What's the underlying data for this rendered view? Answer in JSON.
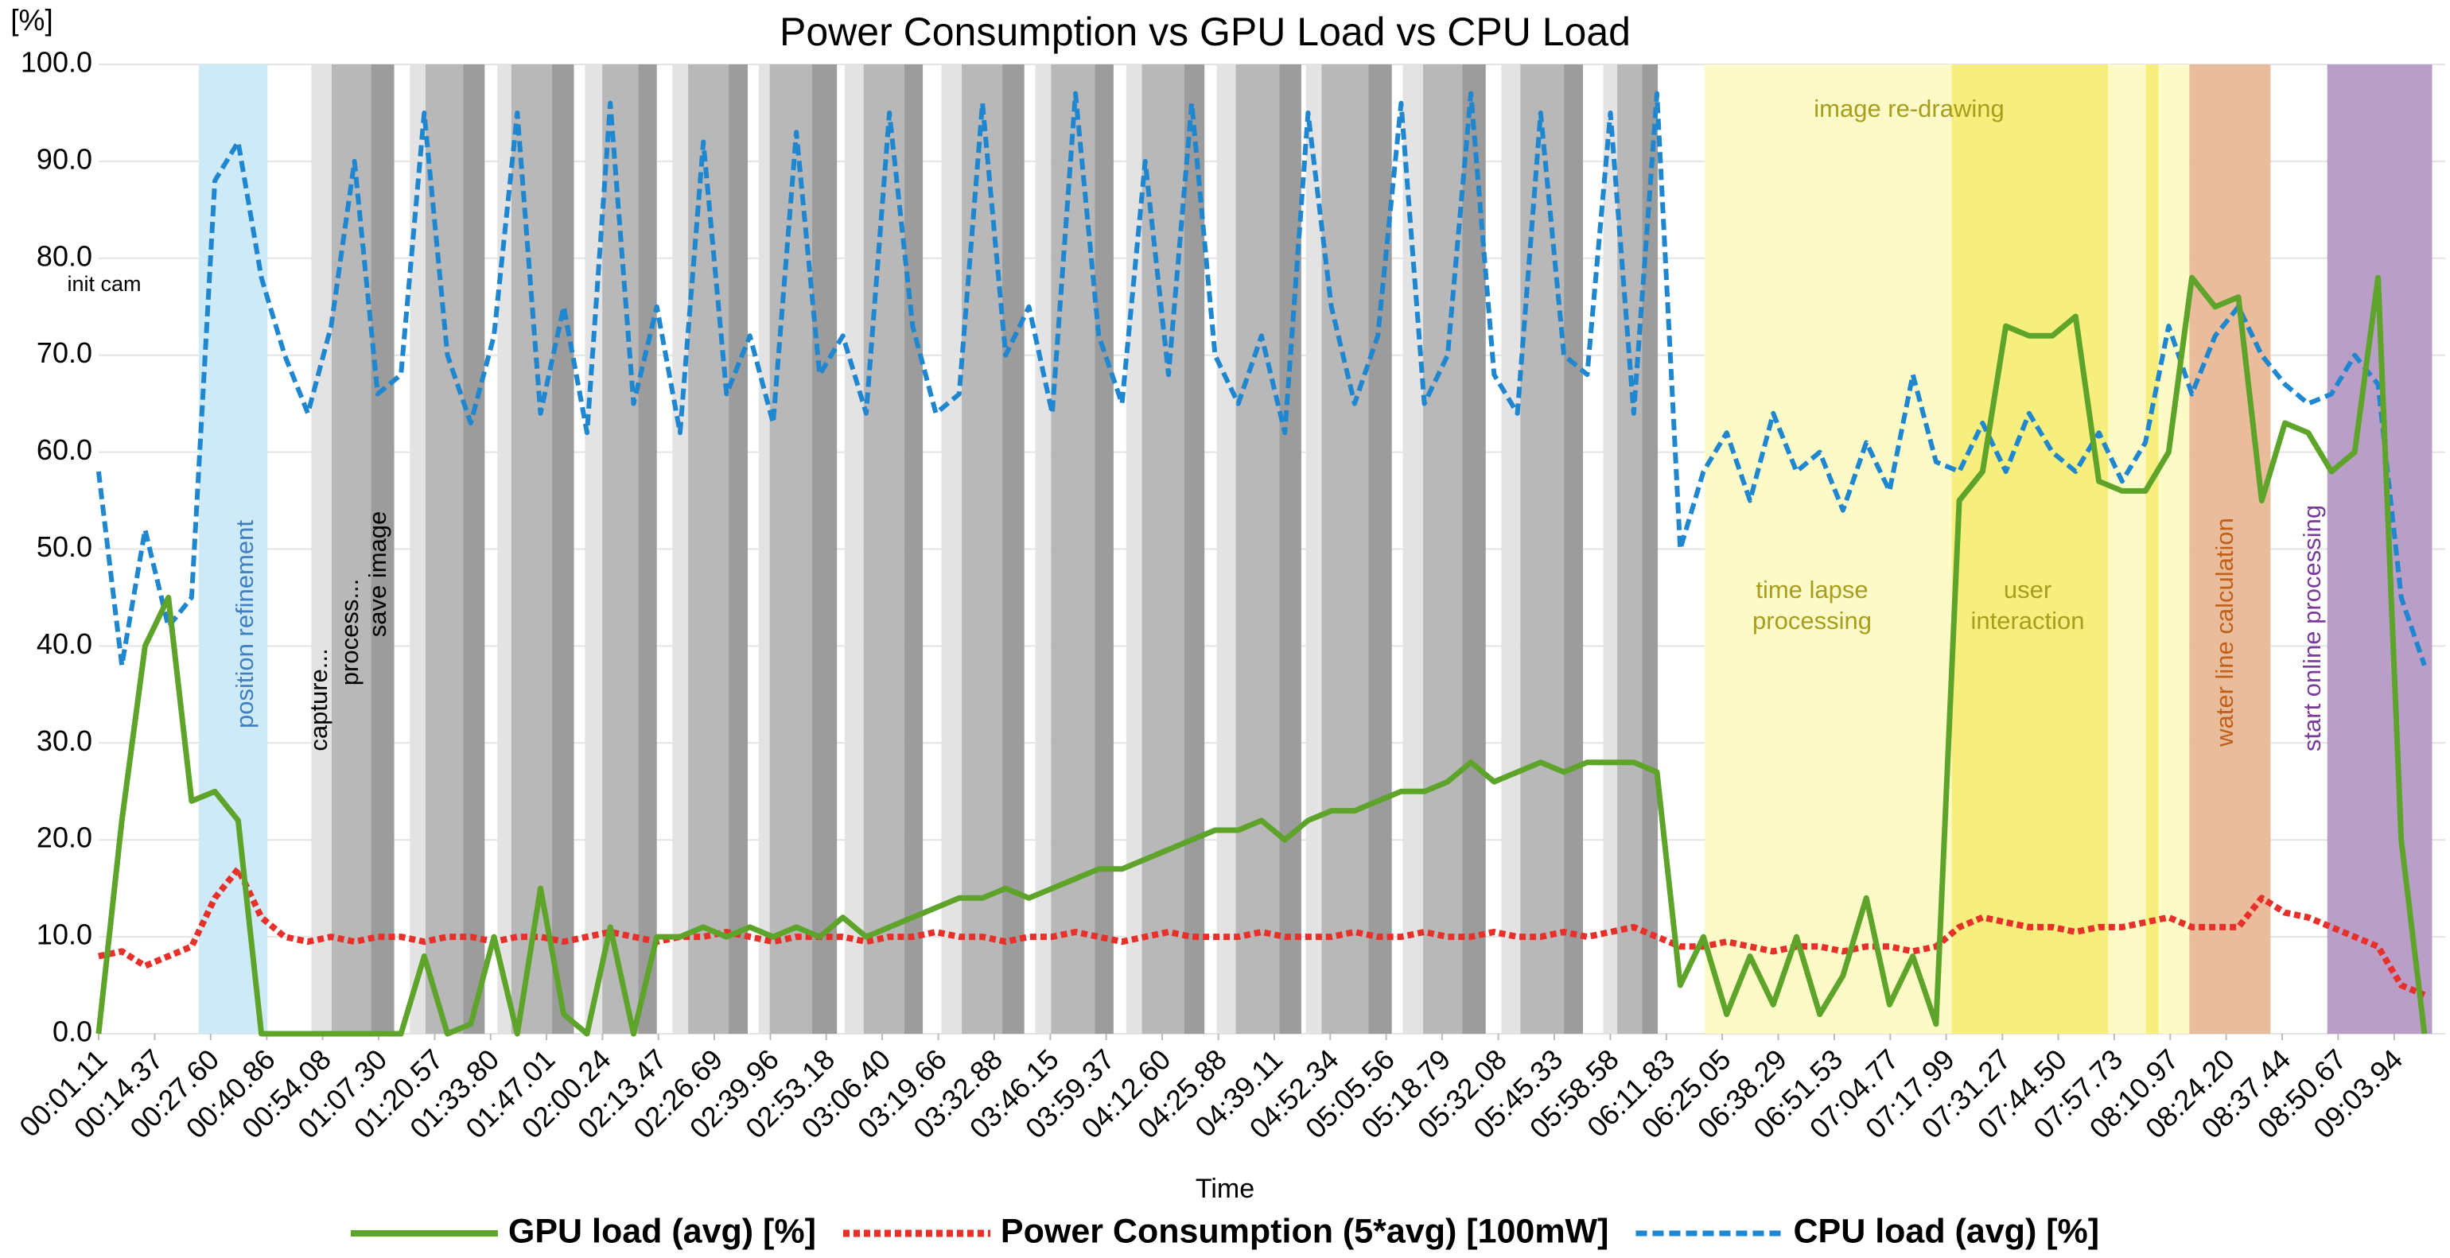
{
  "chart_data": {
    "type": "line",
    "title": "Power Consumption vs GPU Load vs CPU Load",
    "x_label": "Time",
    "y_label": "[%]",
    "grid": true,
    "legend": "bottom",
    "xlim": [
      1.11,
      556
    ],
    "ylim": [
      0,
      100
    ],
    "xticks": [
      {
        "value": 1.11,
        "label": "00:01.11"
      },
      {
        "value": 14.37,
        "label": "00:14.37"
      },
      {
        "value": 27.6,
        "label": "00:27.60"
      },
      {
        "value": 40.86,
        "label": "00:40.86"
      },
      {
        "value": 54.08,
        "label": "00:54.08"
      },
      {
        "value": 67.3,
        "label": "01:07.30"
      },
      {
        "value": 80.57,
        "label": "01:20.57"
      },
      {
        "value": 93.8,
        "label": "01:33.80"
      },
      {
        "value": 107.01,
        "label": "01:47.01"
      },
      {
        "value": 120.24,
        "label": "02:00.24"
      },
      {
        "value": 133.47,
        "label": "02:13.47"
      },
      {
        "value": 146.69,
        "label": "02:26.69"
      },
      {
        "value": 159.96,
        "label": "02:39.96"
      },
      {
        "value": 173.18,
        "label": "02:53.18"
      },
      {
        "value": 186.4,
        "label": "03:06.40"
      },
      {
        "value": 199.66,
        "label": "03:19.66"
      },
      {
        "value": 212.88,
        "label": "03:32.88"
      },
      {
        "value": 226.15,
        "label": "03:46.15"
      },
      {
        "value": 239.37,
        "label": "03:59.37"
      },
      {
        "value": 252.6,
        "label": "04:12.60"
      },
      {
        "value": 265.88,
        "label": "04:25.88"
      },
      {
        "value": 279.11,
        "label": "04:39.11"
      },
      {
        "value": 292.34,
        "label": "04:52.34"
      },
      {
        "value": 305.56,
        "label": "05:05.56"
      },
      {
        "value": 318.79,
        "label": "05:18.79"
      },
      {
        "value": 332.08,
        "label": "05:32.08"
      },
      {
        "value": 345.33,
        "label": "05:45.33"
      },
      {
        "value": 358.58,
        "label": "05:58.58"
      },
      {
        "value": 371.83,
        "label": "06:11.83"
      },
      {
        "value": 385.05,
        "label": "06:25.05"
      },
      {
        "value": 398.29,
        "label": "06:38.29"
      },
      {
        "value": 411.53,
        "label": "06:51.53"
      },
      {
        "value": 424.77,
        "label": "07:04.77"
      },
      {
        "value": 437.99,
        "label": "07:17.99"
      },
      {
        "value": 451.27,
        "label": "07:31.27"
      },
      {
        "value": 464.5,
        "label": "07:44.50"
      },
      {
        "value": 477.73,
        "label": "07:57.73"
      },
      {
        "value": 490.97,
        "label": "08:10.97"
      },
      {
        "value": 504.2,
        "label": "08:24.20"
      },
      {
        "value": 517.44,
        "label": "08:37.44"
      },
      {
        "value": 530.67,
        "label": "08:50.67"
      },
      {
        "value": 543.94,
        "label": "09:03.94"
      }
    ],
    "yticks": [
      {
        "value": 0,
        "label": "0.0"
      },
      {
        "value": 10,
        "label": "10.0"
      },
      {
        "value": 20,
        "label": "20.0"
      },
      {
        "value": 30,
        "label": "30.0"
      },
      {
        "value": 40,
        "label": "40.0"
      },
      {
        "value": 50,
        "label": "50.0"
      },
      {
        "value": 60,
        "label": "60.0"
      },
      {
        "value": 70,
        "label": "70.0"
      },
      {
        "value": 80,
        "label": "80.0"
      },
      {
        "value": 90,
        "label": "90.0"
      },
      {
        "value": 100,
        "label": "100.0"
      }
    ],
    "x": [
      1.1,
      6.6,
      12.1,
      17.6,
      23.1,
      28.6,
      34.1,
      39.6,
      45.1,
      50.6,
      56.1,
      61.6,
      67.1,
      72.6,
      78.1,
      83.6,
      89.1,
      94.6,
      100.1,
      105.6,
      111.1,
      116.6,
      122.1,
      127.6,
      133.1,
      138.6,
      144.1,
      149.6,
      155.1,
      160.6,
      166.1,
      171.6,
      177.1,
      182.6,
      188.1,
      193.6,
      199.1,
      204.6,
      210.1,
      215.6,
      221.1,
      226.6,
      232.1,
      237.6,
      243.1,
      248.6,
      254.1,
      259.6,
      265.1,
      270.6,
      276.1,
      281.6,
      287.1,
      292.6,
      298.1,
      303.6,
      309.1,
      314.6,
      320.1,
      325.6,
      331.1,
      336.6,
      342.1,
      347.6,
      353.1,
      358.6,
      364.1,
      369.6,
      375.1,
      380.6,
      386.1,
      391.6,
      397.1,
      402.6,
      408.1,
      413.6,
      419.1,
      424.6,
      430.1,
      435.6,
      441.1,
      446.6,
      452.1,
      457.6,
      463.1,
      468.6,
      474.1,
      479.6,
      485.1,
      490.6,
      496.1,
      501.6,
      507.1,
      512.6,
      518.1,
      523.6,
      529.1,
      534.6,
      540.1,
      545.6,
      551.1
    ],
    "series": [
      {
        "name": "GPU load (avg) [%]",
        "color": "#5ea32a",
        "dash": "solid",
        "values": [
          0,
          22,
          40,
          45,
          24,
          25,
          22,
          0,
          0,
          0,
          0,
          0,
          0,
          0,
          8,
          0,
          1,
          10,
          0,
          15,
          2,
          0,
          11,
          0,
          10,
          10,
          11,
          10,
          11,
          10,
          11,
          10,
          12,
          10,
          11,
          12,
          13,
          14,
          14,
          15,
          14,
          15,
          16,
          17,
          17,
          18,
          19,
          20,
          21,
          21,
          22,
          20,
          22,
          23,
          23,
          24,
          25,
          25,
          26,
          28,
          26,
          27,
          28,
          27,
          28,
          28,
          28,
          27,
          5,
          10,
          2,
          8,
          3,
          10,
          2,
          6,
          14,
          3,
          8,
          1,
          55,
          58,
          73,
          72,
          72,
          74,
          57,
          56,
          56,
          60,
          78,
          75,
          76,
          55,
          63,
          62,
          58,
          60,
          78,
          20,
          0
        ]
      },
      {
        "name": "Power Consumption (5*avg) [100mW]",
        "color": "#e8302a",
        "dash": "dotted",
        "values": [
          8,
          8.5,
          7,
          8,
          9,
          14,
          17,
          12,
          10,
          9.5,
          10,
          9.5,
          10,
          10,
          9.5,
          10,
          10,
          9.5,
          10,
          10,
          9.5,
          10,
          10.5,
          10,
          9.5,
          10,
          10,
          10.5,
          10,
          9.5,
          10,
          10,
          10,
          9.5,
          10,
          10,
          10.5,
          10,
          10,
          9.5,
          10,
          10,
          10.5,
          10,
          9.5,
          10,
          10.5,
          10,
          10,
          10,
          10.5,
          10,
          10,
          10,
          10.5,
          10,
          10,
          10.5,
          10,
          10,
          10.5,
          10,
          10,
          10.5,
          10,
          10.5,
          11,
          10,
          9,
          9,
          9.5,
          9,
          8.5,
          9,
          9,
          8.5,
          9,
          9,
          8.5,
          9,
          11,
          12,
          11.5,
          11,
          11,
          10.5,
          11,
          11,
          11.5,
          12,
          11,
          11,
          11,
          14,
          12.5,
          12,
          11,
          10,
          9,
          5,
          4
        ]
      },
      {
        "name": "CPU load (avg) [%]",
        "color": "#1f86d0",
        "dash": "dashed",
        "values": [
          58,
          38,
          52,
          42,
          45,
          88,
          92,
          78,
          70,
          64,
          73,
          90,
          66,
          68,
          95,
          70,
          63,
          72,
          95,
          64,
          75,
          62,
          96,
          65,
          75,
          62,
          92,
          66,
          72,
          63,
          93,
          68,
          72,
          64,
          95,
          73,
          64,
          66,
          96,
          70,
          75,
          64,
          97,
          72,
          65,
          90,
          68,
          96,
          70,
          65,
          72,
          62,
          95,
          75,
          65,
          72,
          96,
          65,
          70,
          97,
          68,
          64,
          95,
          70,
          68,
          95,
          64,
          97,
          50,
          58,
          62,
          55,
          64,
          58,
          60,
          54,
          61,
          56,
          68,
          59,
          58,
          63,
          58,
          64,
          60,
          58,
          62,
          57,
          61,
          73,
          66,
          72,
          75,
          70,
          67,
          65,
          66,
          70,
          67,
          45,
          38
        ]
      }
    ],
    "regions": [
      {
        "start": 24.8,
        "end": 41.05,
        "color": "#cfeaf7"
      },
      {
        "start": 380.9,
        "end": 495.5,
        "color": "#fcfbc8"
      },
      {
        "start": 439.3,
        "end": 476.3,
        "color": "#f6ef7e"
      },
      {
        "start": 485.2,
        "end": 488.2,
        "color": "#f6ef7e"
      },
      {
        "start": 495.5,
        "end": 514.7,
        "color": "#e9bd9c"
      },
      {
        "start": 528.1,
        "end": 552.9,
        "color": "#b99fc7"
      }
    ],
    "cycle_colors": {
      "capture": "#e3e3e3",
      "process": "#b8b8b8",
      "save": "#9c9c9c"
    },
    "cycles": [
      {
        "start": 51.4,
        "process": 56.2,
        "save": 65.5,
        "end": 71.0
      },
      {
        "start": 74.7,
        "process": 78.4,
        "save": 87.3,
        "end": 92.4
      },
      {
        "start": 95.4,
        "process": 98.7,
        "save": 108.3,
        "end": 113.5
      },
      {
        "start": 116.1,
        "process": 120.2,
        "save": 128.7,
        "end": 133.1
      },
      {
        "start": 136.8,
        "process": 140.5,
        "save": 150.1,
        "end": 154.6
      },
      {
        "start": 157.2,
        "process": 159.8,
        "save": 169.8,
        "end": 175.7
      },
      {
        "start": 177.5,
        "process": 182.0,
        "save": 191.6,
        "end": 196.0
      },
      {
        "start": 200.4,
        "process": 205.2,
        "save": 214.8,
        "end": 220.0
      },
      {
        "start": 222.6,
        "process": 226.3,
        "save": 236.7,
        "end": 241.1
      },
      {
        "start": 244.1,
        "process": 247.8,
        "save": 257.8,
        "end": 262.6
      },
      {
        "start": 265.5,
        "process": 270.0,
        "save": 280.3,
        "end": 285.5
      },
      {
        "start": 286.6,
        "process": 290.3,
        "save": 301.4,
        "end": 306.9
      },
      {
        "start": 309.5,
        "process": 314.3,
        "save": 323.6,
        "end": 329.1
      },
      {
        "start": 332.8,
        "process": 337.3,
        "save": 347.6,
        "end": 352.1
      },
      {
        "start": 356.9,
        "process": 360.2,
        "save": 366.1,
        "end": 369.8
      }
    ],
    "annotations": [
      {
        "text": [
          "init cam"
        ],
        "color": "#000000"
      },
      {
        "text": [
          "position refinement"
        ],
        "color": "#3d7fc0"
      },
      {
        "text": [
          "capture..."
        ],
        "color": "#000000"
      },
      {
        "text": [
          "process..."
        ],
        "color": "#000000"
      },
      {
        "text": [
          "save image"
        ],
        "color": "#000000"
      },
      {
        "text": [
          "image re-drawing"
        ],
        "color": "#a89d1c"
      },
      {
        "text": [
          "time lapse",
          "processing"
        ],
        "color": "#a89d1c"
      },
      {
        "text": [
          "user",
          "interaction"
        ],
        "color": "#a89d1c"
      },
      {
        "text": [
          "water line calculation"
        ],
        "color": "#c0601a"
      },
      {
        "text": [
          "start online processing"
        ],
        "color": "#7a3a9a"
      }
    ]
  }
}
